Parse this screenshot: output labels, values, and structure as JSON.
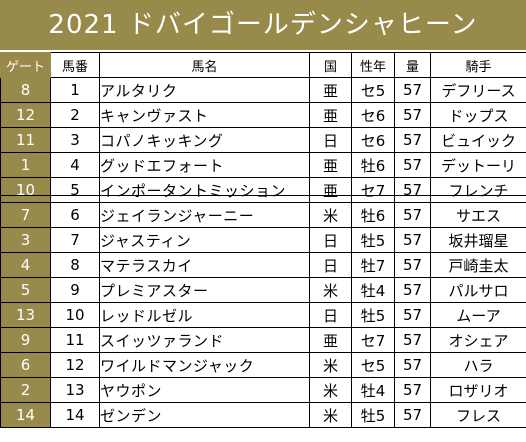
{
  "title": "2021 ドバイゴールデンシャヒーン",
  "headers": {
    "gate": "ゲート",
    "number": "馬番",
    "name": "馬名",
    "country": "国",
    "sex_age": "性年",
    "weight": "量",
    "jockey": "騎手"
  },
  "rows": [
    {
      "gate": "8",
      "number": "1",
      "name": "アルタリク",
      "country": "亜",
      "sex_age": "セ5",
      "weight": "57",
      "jockey": "デフリース"
    },
    {
      "gate": "12",
      "number": "2",
      "name": "キャンヴァスト",
      "country": "亜",
      "sex_age": "セ6",
      "weight": "57",
      "jockey": "ドップス"
    },
    {
      "gate": "11",
      "number": "3",
      "name": "コパノキッキング",
      "country": "日",
      "sex_age": "セ6",
      "weight": "57",
      "jockey": "ビュイック"
    },
    {
      "gate": "1",
      "number": "4",
      "name": "グッドエフォート",
      "country": "亜",
      "sex_age": "牡6",
      "weight": "57",
      "jockey": "デットーリ"
    },
    {
      "gate": "10",
      "number": "5",
      "name": "インポータントミッション",
      "country": "亜",
      "sex_age": "セ7",
      "weight": "57",
      "jockey": "フレンチ"
    },
    {
      "gate": "7",
      "number": "6",
      "name": "ジェイランジャーニー",
      "country": "米",
      "sex_age": "牡6",
      "weight": "57",
      "jockey": "サエス"
    },
    {
      "gate": "3",
      "number": "7",
      "name": "ジャスティン",
      "country": "日",
      "sex_age": "牡5",
      "weight": "57",
      "jockey": "坂井瑠星"
    },
    {
      "gate": "4",
      "number": "8",
      "name": "マテラスカイ",
      "country": "日",
      "sex_age": "牡7",
      "weight": "57",
      "jockey": "戸崎圭太"
    },
    {
      "gate": "5",
      "number": "9",
      "name": "プレミアスター",
      "country": "米",
      "sex_age": "牡4",
      "weight": "57",
      "jockey": "パルサロ"
    },
    {
      "gate": "13",
      "number": "10",
      "name": "レッドルゼル",
      "country": "日",
      "sex_age": "牡5",
      "weight": "57",
      "jockey": "ムーア"
    },
    {
      "gate": "9",
      "number": "11",
      "name": "スイッツァランド",
      "country": "亜",
      "sex_age": "セ7",
      "weight": "57",
      "jockey": "オシェア"
    },
    {
      "gate": "6",
      "number": "12",
      "name": "ワイルドマンジャック",
      "country": "米",
      "sex_age": "セ5",
      "weight": "57",
      "jockey": "ハラ"
    },
    {
      "gate": "2",
      "number": "13",
      "name": "ヤウポン",
      "country": "米",
      "sex_age": "牡4",
      "weight": "57",
      "jockey": "ロザリオ"
    },
    {
      "gate": "14",
      "number": "14",
      "name": "ゼンデン",
      "country": "米",
      "sex_age": "牡5",
      "weight": "57",
      "jockey": "フレス"
    }
  ],
  "colors": {
    "header_bg": "#978a4b",
    "header_text": "#ffffff"
  }
}
